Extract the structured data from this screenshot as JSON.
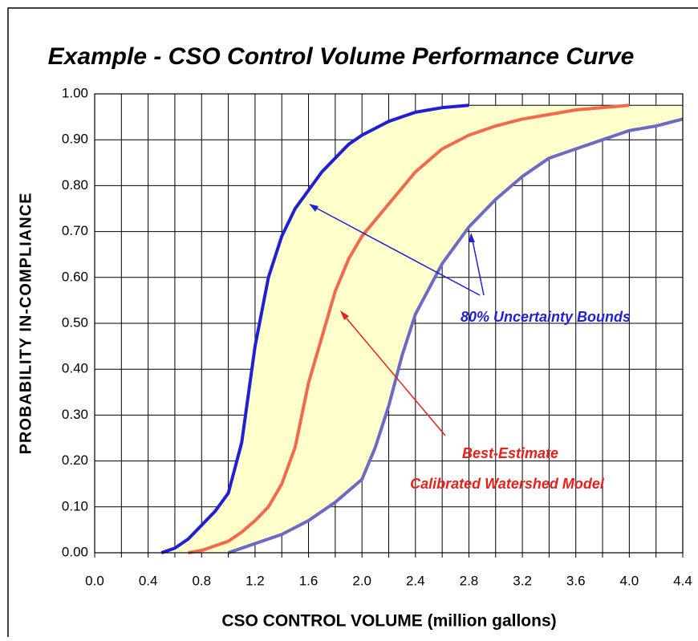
{
  "chart_data": {
    "type": "line",
    "title": "Example - CSO Control Volume Performance Curve",
    "x_label": "CSO CONTROL VOLUME (million gallons)",
    "y_label": "PROBABILITY  IN-COMPLIANCE",
    "xlim": [
      0,
      4.4
    ],
    "ylim": [
      0,
      1
    ],
    "xticks": [
      {
        "value": 0,
        "label": "0.0"
      },
      0.4,
      0.8,
      1.2,
      1.6,
      {
        "value": 2,
        "label": "2.0"
      },
      2.4,
      2.8,
      3.2,
      3.6,
      {
        "value": 4,
        "label": "4.0"
      },
      4.4
    ],
    "x_minor_ticks": [
      0.2,
      0.6,
      1,
      1.4,
      1.8,
      2.2,
      2.6,
      3,
      3.4,
      3.8,
      4.2
    ],
    "yticks": [
      {
        "value": 0,
        "label": "0.00"
      },
      {
        "value": 0.1,
        "label": "0.10"
      },
      {
        "value": 0.2,
        "label": "0.20"
      },
      {
        "value": 0.3,
        "label": "0.30"
      },
      {
        "value": 0.4,
        "label": "0.40"
      },
      {
        "value": 0.5,
        "label": "0.50"
      },
      {
        "value": 0.6,
        "label": "0.60"
      },
      {
        "value": 0.7,
        "label": "0.70"
      },
      {
        "value": 0.8,
        "label": "0.80"
      },
      {
        "value": 0.9,
        "label": "0.90"
      },
      {
        "value": 1,
        "label": "1.00"
      }
    ],
    "grid": true,
    "band_color": "#ffffcc",
    "series": [
      {
        "color": "#1f1fd6",
        "x": [
          0.5,
          0.6,
          0.7,
          0.8,
          0.9,
          1.0,
          1.1,
          1.2,
          1.3,
          1.4,
          1.5,
          1.6,
          1.7,
          1.8,
          1.9,
          2.0,
          2.2,
          2.4,
          2.6,
          2.8
        ],
        "values": [
          0,
          0.01,
          0.03,
          0.06,
          0.09,
          0.13,
          0.24,
          0.45,
          0.6,
          0.69,
          0.75,
          0.79,
          0.83,
          0.86,
          0.89,
          0.91,
          0.94,
          0.96,
          0.97,
          0.975
        ]
      },
      {
        "color": "#f26a4b",
        "x": [
          0.7,
          0.8,
          0.9,
          1.0,
          1.1,
          1.2,
          1.3,
          1.4,
          1.5,
          1.6,
          1.7,
          1.8,
          1.9,
          2.0,
          2.2,
          2.4,
          2.6,
          2.8,
          3.0,
          3.2,
          3.4,
          3.6,
          3.8,
          4.0
        ],
        "values": [
          0,
          0.005,
          0.015,
          0.025,
          0.045,
          0.07,
          0.1,
          0.15,
          0.23,
          0.37,
          0.47,
          0.57,
          0.64,
          0.69,
          0.76,
          0.83,
          0.88,
          0.91,
          0.93,
          0.945,
          0.955,
          0.965,
          0.97,
          0.975
        ]
      },
      {
        "color": "#6b6bc4",
        "x": [
          1.0,
          1.2,
          1.4,
          1.6,
          1.8,
          2.0,
          2.1,
          2.2,
          2.3,
          2.4,
          2.6,
          2.8,
          3.0,
          3.2,
          3.4,
          3.6,
          3.8,
          4.0,
          4.2,
          4.4
        ],
        "values": [
          0,
          0.02,
          0.04,
          0.07,
          0.11,
          0.16,
          0.23,
          0.32,
          0.43,
          0.52,
          0.63,
          0.71,
          0.77,
          0.82,
          0.86,
          0.88,
          0.9,
          0.92,
          0.93,
          0.945
        ]
      }
    ],
    "annotations": [
      "80% Uncertainty Bounds",
      "Best-Estimate",
      "Calibrated Watershed Model"
    ]
  }
}
